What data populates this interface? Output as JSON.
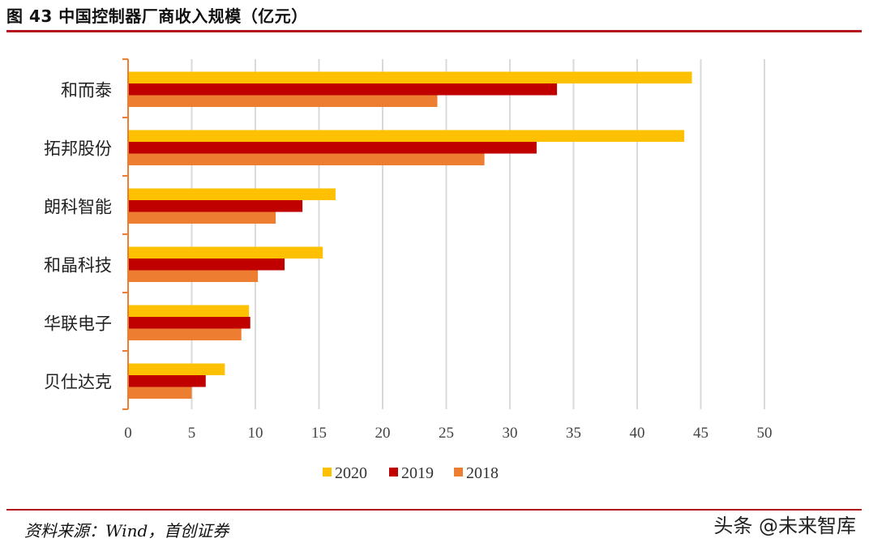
{
  "figure_title": "图 43 中国控制器厂商收入规模（亿元）",
  "source_text": "资料来源：Wind，首创证券",
  "watermark": "头条 @未来智库",
  "chart_data": {
    "type": "bar",
    "orientation": "horizontal",
    "title": "",
    "xlabel": "",
    "ylabel": "",
    "xlim": [
      0,
      50
    ],
    "xticks": [
      0,
      5,
      10,
      15,
      20,
      25,
      30,
      35,
      40,
      45,
      50
    ],
    "grid": true,
    "legend_position": "bottom",
    "categories": [
      "和而泰",
      "拓邦股份",
      "朗科智能",
      "和晶科技",
      "华联电子",
      "贝仕达克"
    ],
    "series": [
      {
        "name": "2020",
        "color": "#ffc000",
        "values": [
          44.3,
          43.7,
          16.3,
          15.3,
          9.5,
          7.6
        ]
      },
      {
        "name": "2019",
        "color": "#c00000",
        "values": [
          33.7,
          32.1,
          13.7,
          12.3,
          9.6,
          6.1
        ]
      },
      {
        "name": "2018",
        "color": "#ed7d31",
        "values": [
          24.3,
          28.0,
          11.6,
          10.2,
          8.9,
          5.0
        ]
      }
    ]
  }
}
